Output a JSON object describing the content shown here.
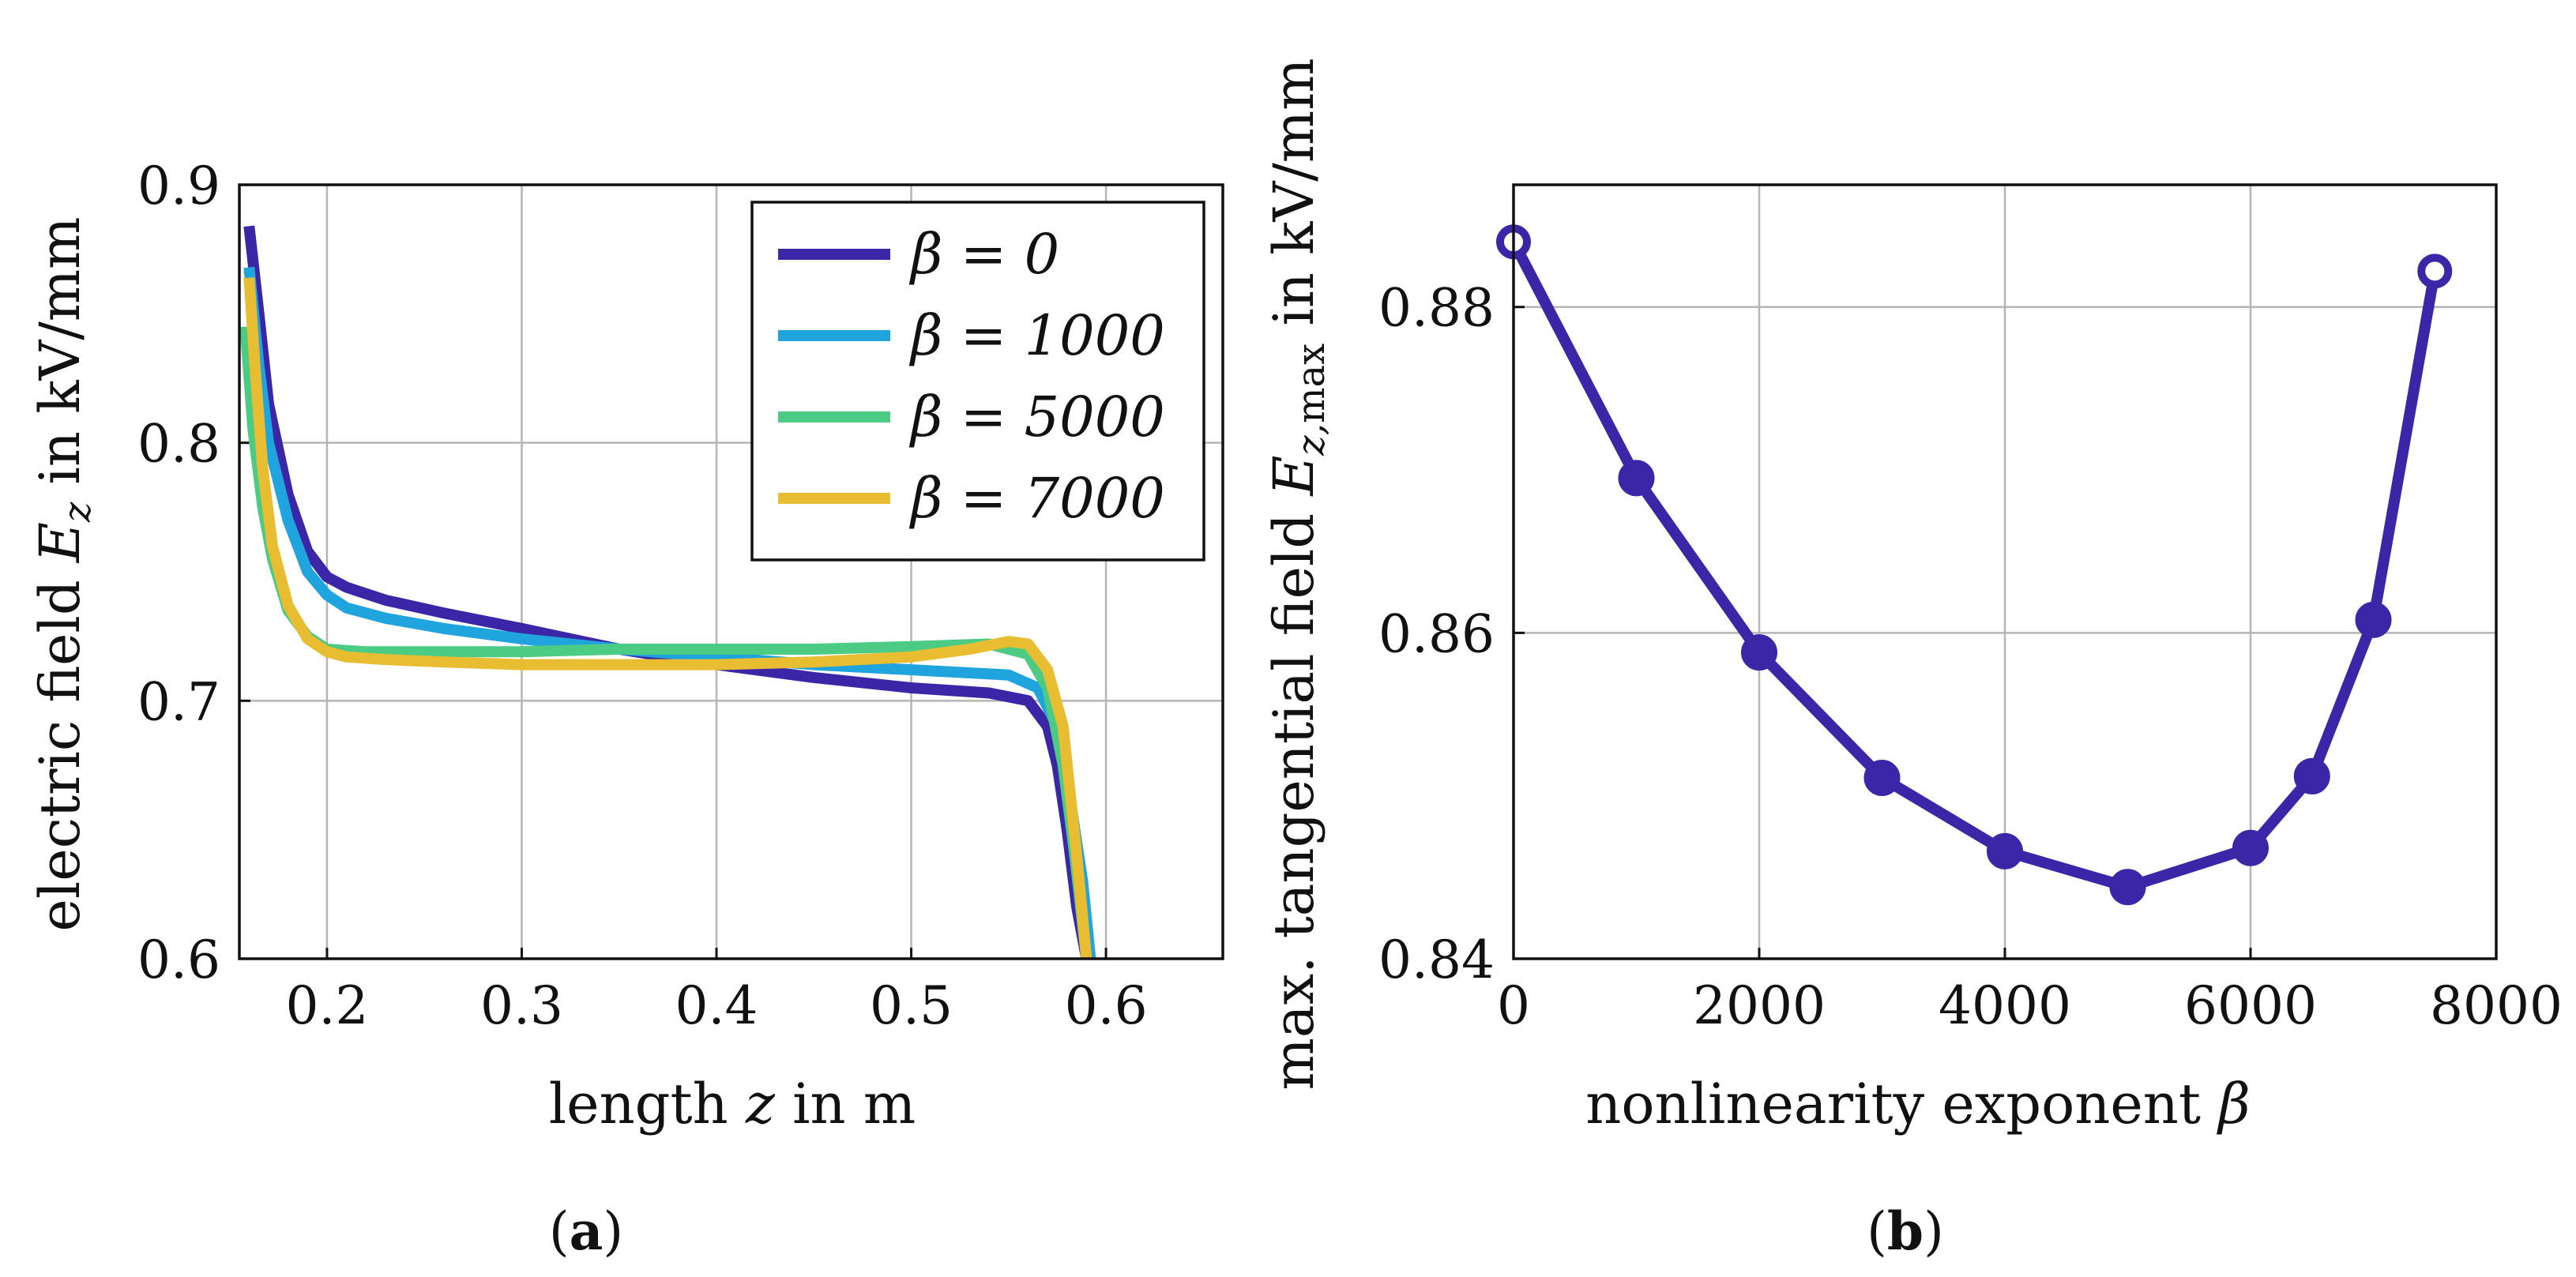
{
  "chart_data": [
    {
      "id": "a",
      "type": "line",
      "caption_letter": "a",
      "xlabel": "length z in m",
      "ylabel": "electric field E_z in kV/mm",
      "xlim": [
        0.155,
        0.66
      ],
      "ylim": [
        0.6,
        0.9
      ],
      "xticks": [
        0.2,
        0.3,
        0.4,
        0.5,
        0.6
      ],
      "xtick_labels": [
        "0.2",
        "0.3",
        "0.4",
        "0.5",
        "0.6"
      ],
      "yticks": [
        0.6,
        0.7,
        0.8,
        0.9
      ],
      "ytick_labels": [
        "0.6",
        "0.7",
        "0.8",
        "0.9"
      ],
      "grid": true,
      "legend_position": "top-right",
      "series": [
        {
          "name": "β = 0",
          "color": "#3b26a8",
          "x": [
            0.16,
            0.165,
            0.17,
            0.18,
            0.19,
            0.2,
            0.21,
            0.23,
            0.26,
            0.3,
            0.35,
            0.4,
            0.45,
            0.5,
            0.54,
            0.56,
            0.57,
            0.575,
            0.58,
            0.585,
            0.59
          ],
          "y": [
            0.884,
            0.85,
            0.815,
            0.78,
            0.758,
            0.748,
            0.744,
            0.739,
            0.734,
            0.728,
            0.72,
            0.714,
            0.709,
            0.705,
            0.703,
            0.7,
            0.69,
            0.675,
            0.65,
            0.62,
            0.6
          ]
        },
        {
          "name": "β = 1000",
          "color": "#1fa4de",
          "x": [
            0.16,
            0.165,
            0.17,
            0.18,
            0.19,
            0.2,
            0.21,
            0.23,
            0.26,
            0.3,
            0.35,
            0.4,
            0.45,
            0.5,
            0.55,
            0.565,
            0.575,
            0.582,
            0.588,
            0.592
          ],
          "y": [
            0.868,
            0.83,
            0.8,
            0.77,
            0.75,
            0.741,
            0.736,
            0.732,
            0.728,
            0.724,
            0.72,
            0.717,
            0.714,
            0.712,
            0.71,
            0.705,
            0.69,
            0.66,
            0.63,
            0.6
          ]
        },
        {
          "name": "β = 5000",
          "color": "#4ccb84",
          "x": [
            0.158,
            0.162,
            0.167,
            0.172,
            0.18,
            0.19,
            0.2,
            0.22,
            0.26,
            0.3,
            0.35,
            0.4,
            0.45,
            0.5,
            0.54,
            0.56,
            0.57,
            0.578,
            0.584,
            0.59
          ],
          "y": [
            0.845,
            0.805,
            0.775,
            0.755,
            0.735,
            0.725,
            0.72,
            0.719,
            0.719,
            0.719,
            0.72,
            0.72,
            0.72,
            0.721,
            0.722,
            0.718,
            0.705,
            0.675,
            0.64,
            0.6
          ]
        },
        {
          "name": "β = 7000",
          "color": "#e9bd32",
          "x": [
            0.16,
            0.163,
            0.167,
            0.172,
            0.18,
            0.19,
            0.2,
            0.21,
            0.23,
            0.26,
            0.3,
            0.35,
            0.4,
            0.45,
            0.5,
            0.53,
            0.55,
            0.56,
            0.57,
            0.578,
            0.585,
            0.59
          ],
          "y": [
            0.864,
            0.83,
            0.79,
            0.76,
            0.737,
            0.724,
            0.719,
            0.717,
            0.716,
            0.715,
            0.714,
            0.714,
            0.714,
            0.715,
            0.717,
            0.72,
            0.723,
            0.722,
            0.712,
            0.69,
            0.64,
            0.6
          ]
        }
      ]
    },
    {
      "id": "b",
      "type": "line",
      "caption_letter": "b",
      "xlabel": "nonlinearity exponent β",
      "ylabel": "max. tangential field E_z,max in kV/mm",
      "xlim": [
        0,
        8000
      ],
      "ylim": [
        0.84,
        0.8875
      ],
      "xticks": [
        0,
        2000,
        4000,
        6000,
        8000
      ],
      "xtick_labels": [
        "0",
        "2000",
        "4000",
        "6000",
        "8000"
      ],
      "yticks": [
        0.84,
        0.86,
        0.88
      ],
      "ytick_labels": [
        "0.84",
        "0.86",
        "0.88"
      ],
      "grid": true,
      "series": [
        {
          "color": "#3b26a8",
          "x": [
            0,
            1000,
            2000,
            3000,
            4000,
            5000,
            6000,
            6500,
            7000,
            7500
          ],
          "y": [
            0.884,
            0.8695,
            0.8588,
            0.8511,
            0.8466,
            0.8444,
            0.8468,
            0.8512,
            0.8608,
            0.8822
          ],
          "open_markers": [
            0,
            7500
          ]
        }
      ]
    }
  ]
}
